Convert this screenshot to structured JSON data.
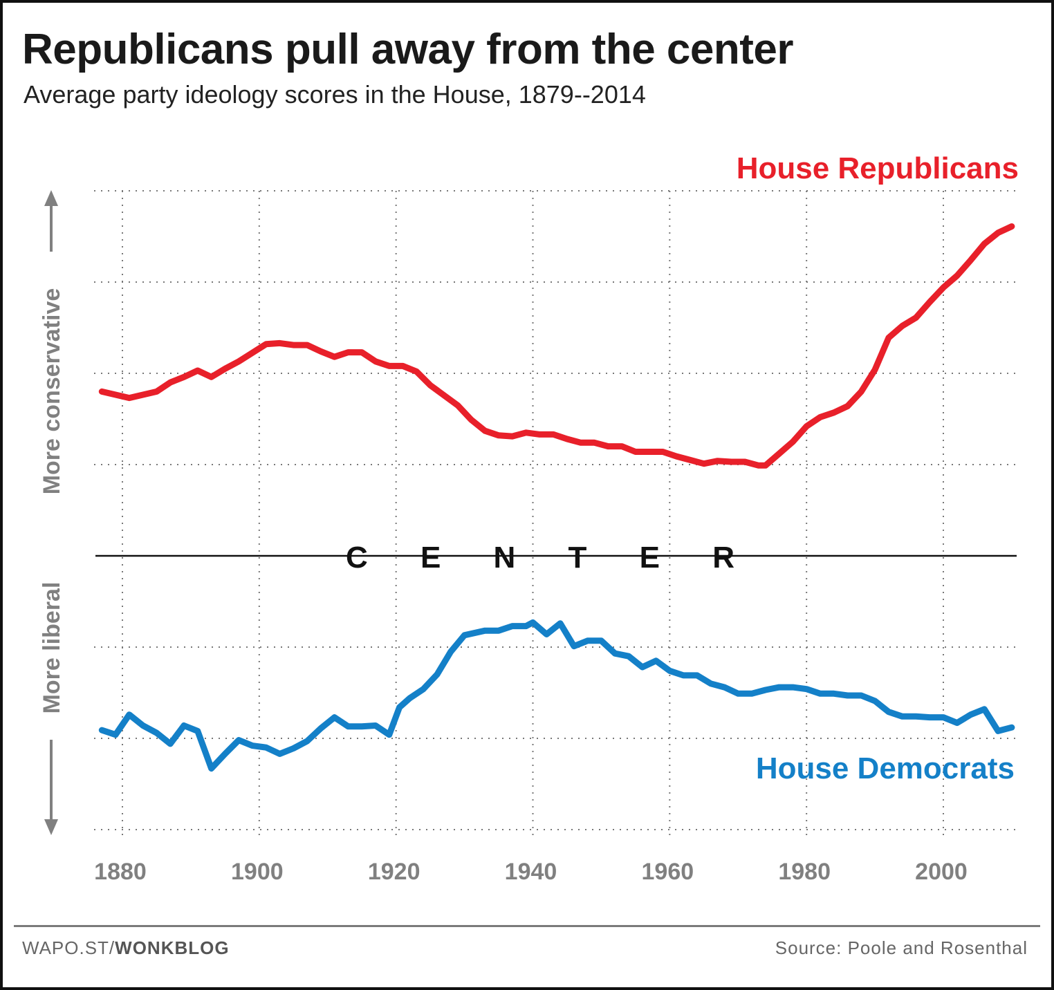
{
  "header": {
    "title": "Republicans pull away from the center",
    "subtitle": "Average party ideology scores in the House, 1879--2014"
  },
  "axis": {
    "up_label": "More conservative",
    "down_label": "More liberal",
    "center_label": "C E N T E R"
  },
  "footer": {
    "brand_prefix": "WAPO.ST/",
    "brand_bold": "WONKBLOG",
    "source": "Source: Poole and Rosenthal"
  },
  "colors": {
    "republican": "#e8202a",
    "democrat": "#1480c8",
    "grid": "#777777",
    "axis_text": "#808080"
  },
  "chart_data": {
    "type": "line",
    "title": "Republicans pull away from the center",
    "subtitle": "Average party ideology scores in the House, 1879--2014",
    "xlabel": "",
    "ylabel": "",
    "xlim": [
      1873,
      2014
    ],
    "ylim": [
      -0.3,
      0.4
    ],
    "grid": true,
    "center_value": 0,
    "xticks": [
      1880,
      1900,
      1920,
      1940,
      1960,
      1980,
      2000
    ],
    "xtick_labels": [
      "1880",
      "1900",
      "1920",
      "1940",
      "1960",
      "1980",
      "2000"
    ],
    "yticks": [
      -0.3,
      -0.2,
      -0.1,
      0,
      0.1,
      0.2,
      0.3,
      0.4
    ],
    "series": [
      {
        "name": "House Republicans",
        "color": "#e8202a",
        "x": [
          1877,
          1881,
          1885,
          1887,
          1889,
          1891,
          1893,
          1895,
          1897,
          1901,
          1903,
          1905,
          1907,
          1909,
          1911,
          1913,
          1915,
          1917,
          1919,
          1921,
          1923,
          1925,
          1927,
          1929,
          1931,
          1933,
          1935,
          1937,
          1939,
          1941,
          1943,
          1945,
          1947,
          1949,
          1951,
          1953,
          1955,
          1957,
          1959,
          1961,
          1963,
          1965,
          1967,
          1969,
          1971,
          1973,
          1974,
          1976,
          1978,
          1980,
          1982,
          1984,
          1986,
          1988,
          1990,
          1992,
          1994,
          1996,
          1998,
          2000,
          2002,
          2004,
          2006,
          2008,
          2010
        ],
        "y": [
          0.18,
          0.173,
          0.18,
          0.19,
          0.196,
          0.203,
          0.196,
          0.205,
          0.213,
          0.232,
          0.233,
          0.231,
          0.231,
          0.224,
          0.218,
          0.223,
          0.223,
          0.213,
          0.208,
          0.208,
          0.202,
          0.187,
          0.176,
          0.165,
          0.149,
          0.137,
          0.132,
          0.131,
          0.135,
          0.133,
          0.133,
          0.128,
          0.124,
          0.124,
          0.12,
          0.12,
          0.114,
          0.114,
          0.114,
          0.109,
          0.105,
          0.101,
          0.104,
          0.103,
          0.103,
          0.099,
          0.099,
          0.112,
          0.125,
          0.142,
          0.152,
          0.157,
          0.164,
          0.18,
          0.204,
          0.239,
          0.252,
          0.261,
          0.278,
          0.294,
          0.307,
          0.324,
          0.342,
          0.354,
          0.361
        ]
      },
      {
        "name": "House Democrats",
        "color": "#1480c8",
        "x": [
          1877,
          1879,
          1881,
          1883,
          1885,
          1887,
          1889,
          1891,
          1893,
          1895,
          1897,
          1899,
          1901,
          1903,
          1905,
          1907,
          1909,
          1911,
          1913,
          1915,
          1917,
          1919,
          1920.5,
          1922,
          1924,
          1926,
          1928,
          1930,
          1933,
          1935,
          1937,
          1939,
          1940,
          1942,
          1944,
          1946,
          1948,
          1950,
          1952,
          1954,
          1956,
          1958,
          1960,
          1962,
          1964,
          1966,
          1968,
          1970,
          1972,
          1974,
          1976,
          1978,
          1980,
          1982,
          1984,
          1986,
          1988,
          1990,
          1992,
          1994,
          1996,
          1998,
          2000,
          2002,
          2004,
          2006,
          2008,
          2010
        ],
        "y": [
          -0.191,
          -0.196,
          -0.174,
          -0.186,
          -0.194,
          -0.206,
          -0.186,
          -0.192,
          -0.233,
          -0.217,
          -0.202,
          -0.208,
          -0.21,
          -0.217,
          -0.211,
          -0.203,
          -0.189,
          -0.177,
          -0.187,
          -0.187,
          -0.186,
          -0.196,
          -0.166,
          -0.156,
          -0.146,
          -0.13,
          -0.105,
          -0.087,
          -0.082,
          -0.082,
          -0.077,
          -0.077,
          -0.073,
          -0.086,
          -0.074,
          -0.099,
          -0.093,
          -0.093,
          -0.107,
          -0.11,
          -0.122,
          -0.115,
          -0.126,
          -0.131,
          -0.131,
          -0.14,
          -0.144,
          -0.151,
          -0.151,
          -0.147,
          -0.144,
          -0.144,
          -0.146,
          -0.151,
          -0.151,
          -0.153,
          -0.153,
          -0.159,
          -0.171,
          -0.176,
          -0.176,
          -0.177,
          -0.177,
          -0.183,
          -0.174,
          -0.168,
          -0.192,
          -0.188
        ]
      }
    ],
    "legend": [
      {
        "label": "House Republicans",
        "placement": "top-right"
      },
      {
        "label": "House Democrats",
        "placement": "bottom-right"
      }
    ]
  }
}
